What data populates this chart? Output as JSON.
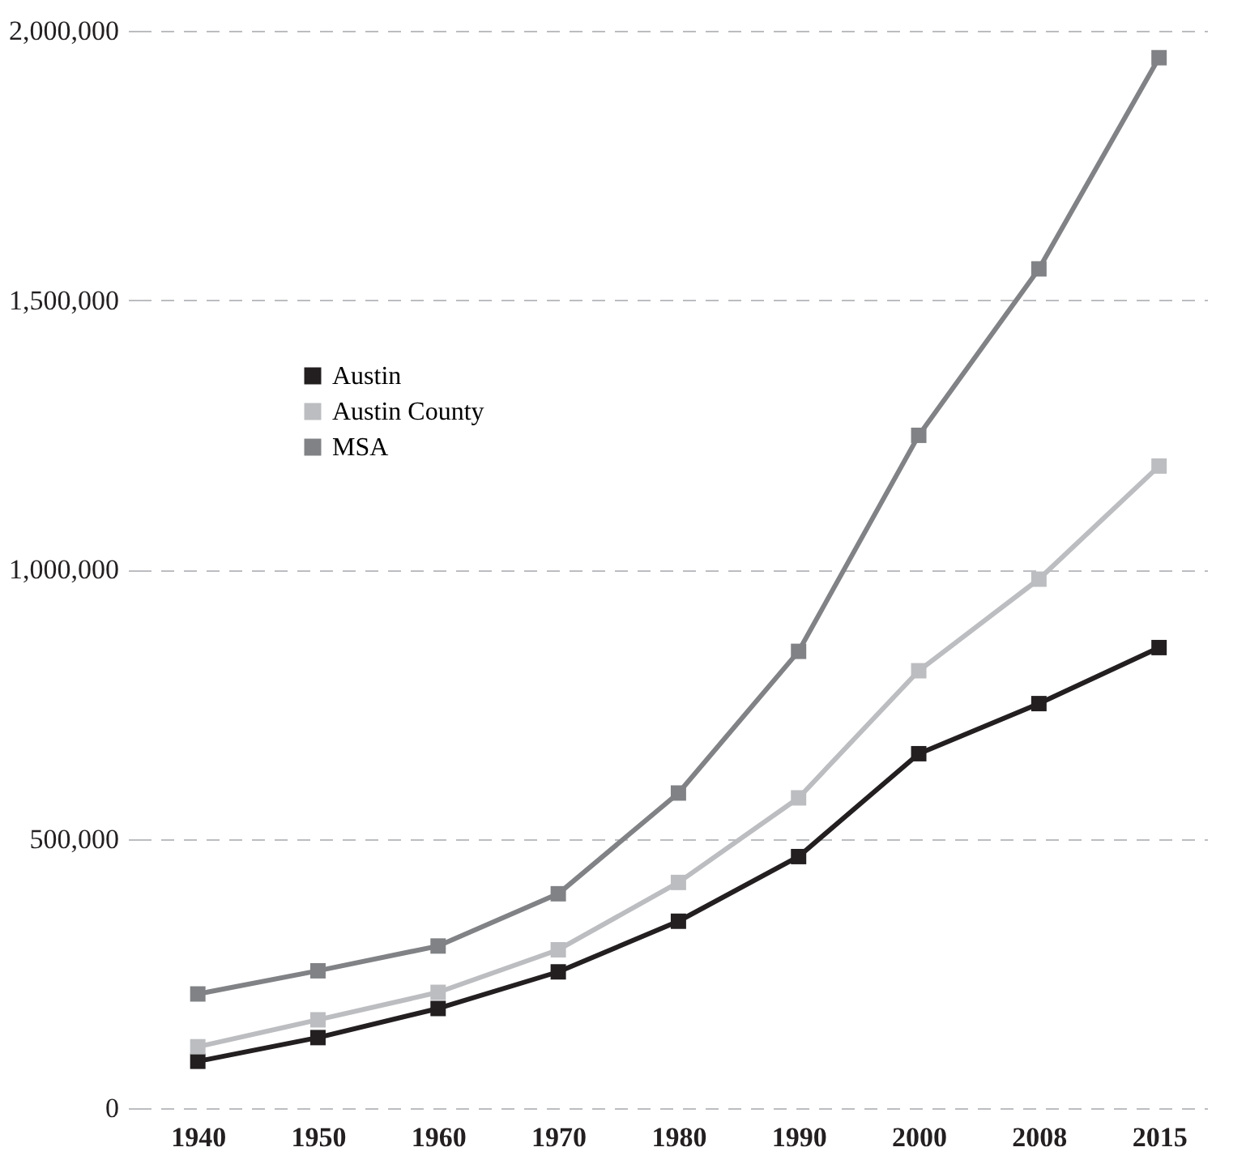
{
  "chart_data": {
    "type": "line",
    "categories": [
      "1940",
      "1950",
      "1960",
      "1970",
      "1980",
      "1990",
      "2000",
      "2008",
      "2015"
    ],
    "series": [
      {
        "name": "Austin",
        "color": "#231f20",
        "values": [
          87000,
          131000,
          185000,
          253000,
          347000,
          467000,
          658000,
          751000,
          855000
        ]
      },
      {
        "name": "Austin County",
        "color": "#bcbdc0",
        "values": [
          114000,
          164000,
          215000,
          294000,
          419000,
          576000,
          812000,
          982000,
          1192000
        ]
      },
      {
        "name": "MSA",
        "color": "#808285",
        "values": [
          212000,
          255000,
          301000,
          398000,
          585000,
          848000,
          1249000,
          1558000,
          1950000
        ]
      }
    ],
    "ylim": [
      0,
      2000000
    ],
    "yticks": [
      0,
      {
        "value": 500000,
        "label": "500,000"
      },
      {
        "value": 1000000,
        "label": "1,000,000"
      },
      {
        "value": 1500000,
        "label": "1,500,000"
      },
      {
        "value": 2000000,
        "label": "2,000,000"
      }
    ],
    "grid": "y",
    "legend": "top left",
    "marker": "square",
    "line_style": "solid"
  }
}
